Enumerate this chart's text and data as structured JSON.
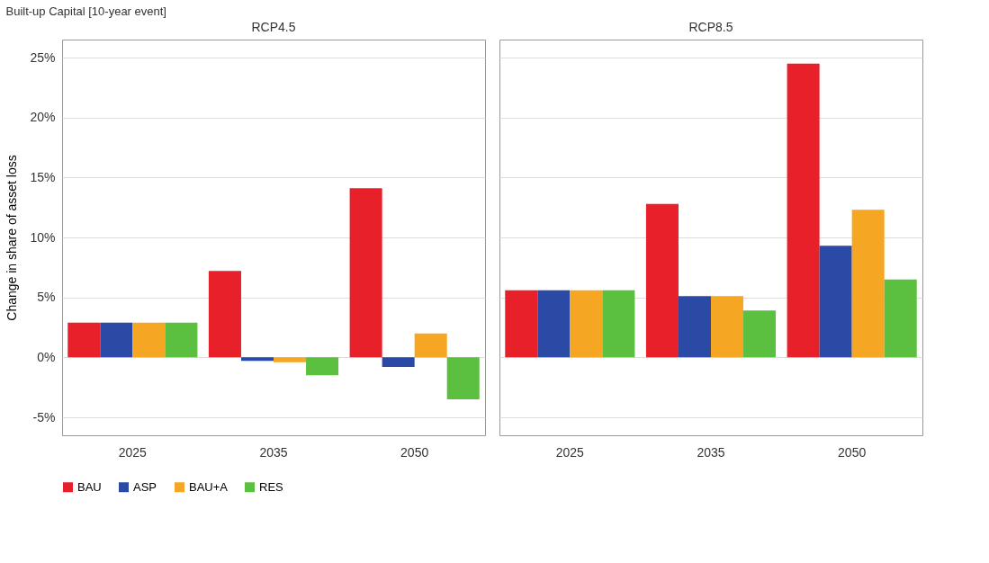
{
  "chart_data": [
    {
      "type": "bar",
      "title": "RCP4.5",
      "annotations": [
        "Built-up Capital [10-year event]"
      ],
      "ylabel": "Change in share of asset loss",
      "categories": [
        "2025",
        "2035",
        "2050"
      ],
      "series": [
        {
          "name": "BAU",
          "color": "#e8202a",
          "values": [
            2.9,
            7.2,
            14.1
          ]
        },
        {
          "name": "ASP",
          "color": "#2a4aa6",
          "values": [
            2.9,
            -0.3,
            -0.8
          ]
        },
        {
          "name": "BAU+A",
          "color": "#f5a623",
          "values": [
            2.9,
            -0.4,
            2.0
          ]
        },
        {
          "name": "RES",
          "color": "#5bbf3f",
          "values": [
            2.9,
            -1.5,
            -3.5
          ]
        }
      ],
      "ylim": [
        -6.5,
        26.5
      ],
      "yticks": [
        {
          "value": -5,
          "label": "-5%"
        },
        {
          "value": 0,
          "label": "0%"
        },
        {
          "value": 5,
          "label": "5%"
        },
        {
          "value": 10,
          "label": "10%"
        },
        {
          "value": 15,
          "label": "15%"
        },
        {
          "value": 20,
          "label": "20%"
        },
        {
          "value": 25,
          "label": "25%"
        }
      ],
      "grid": "y",
      "legend": "bottom"
    },
    {
      "type": "bar",
      "title": "RCP8.5",
      "categories": [
        "2025",
        "2035",
        "2050"
      ],
      "series": [
        {
          "name": "BAU",
          "color": "#e8202a",
          "values": [
            5.6,
            12.8,
            24.5
          ]
        },
        {
          "name": "ASP",
          "color": "#2a4aa6",
          "values": [
            5.6,
            5.1,
            9.3
          ]
        },
        {
          "name": "BAU+A",
          "color": "#f5a623",
          "values": [
            5.6,
            5.1,
            12.3
          ]
        },
        {
          "name": "RES",
          "color": "#5bbf3f",
          "values": [
            5.6,
            3.9,
            6.5
          ]
        }
      ],
      "ylim": [
        -6.5,
        26.5
      ],
      "yticks": [
        -5,
        0,
        5,
        10,
        15,
        20,
        25
      ],
      "grid": "y",
      "tick_labels": "x",
      "legend": "bottom"
    }
  ]
}
